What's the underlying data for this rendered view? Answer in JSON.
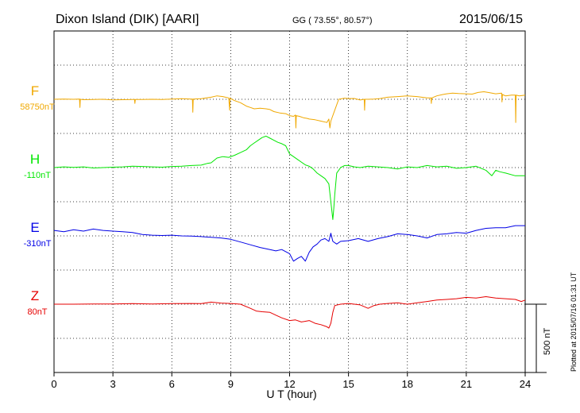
{
  "header": {
    "station": "Dixon Island (DIK)  [AARI]",
    "coords": "GG ( 73.55°,  80.57°)",
    "date": "2015/06/15"
  },
  "side_note": "Plotted at 2015/07/16 01:31  UT",
  "scale_bar_label": "500 nT",
  "colors": {
    "F": "#f0a800",
    "H": "#00e600",
    "E": "#0000e6",
    "Z": "#e60000"
  },
  "chart_data": {
    "type": "line",
    "title": "Dixon Island (DIK)  [AARI]",
    "xlabel": "U T (hour)",
    "ylabel": "",
    "xlim": [
      0,
      24
    ],
    "x_ticks": [
      "0",
      "3",
      "6",
      "9",
      "12",
      "15",
      "18",
      "21",
      "24"
    ],
    "grid": true,
    "scale_nT": 500,
    "series": [
      {
        "name": "F",
        "baseline_label": "58750nT",
        "x": [
          0,
          0.5,
          1.0,
          1.3,
          1.32,
          1.34,
          1.5,
          2,
          2.5,
          3,
          3.5,
          4,
          4.1,
          4.12,
          4.14,
          4.5,
          5,
          5.5,
          6,
          6.5,
          7,
          7.05,
          7.07,
          7.09,
          7.5,
          8,
          8.3,
          8.6,
          8.9,
          8.95,
          8.97,
          8.99,
          9.2,
          9.5,
          9.8,
          10.0,
          10.2,
          10.5,
          10.8,
          11.0,
          11.2,
          11.5,
          11.8,
          12.0,
          12.2,
          12.3,
          12.32,
          12.34,
          12.5,
          12.7,
          12.9,
          13.0,
          13.3,
          13.6,
          13.9,
          14.0,
          14.05,
          14.1,
          14.3,
          14.5,
          14.8,
          15.0,
          15.3,
          15.6,
          15.8,
          15.82,
          15.84,
          16.0,
          16.3,
          16.6,
          17.0,
          17.5,
          18.0,
          18.5,
          19.0,
          19.2,
          19.22,
          19.24,
          19.5,
          19.8,
          20.0,
          20.3,
          20.6,
          21.0,
          21.3,
          21.6,
          21.9,
          22.2,
          22.5,
          22.8,
          22.82,
          22.84,
          23.0,
          23.3,
          23.5,
          23.52,
          23.54,
          23.7,
          24.0
        ],
        "y": [
          0,
          2,
          0,
          1,
          -60,
          0,
          -3,
          -2,
          0,
          -4,
          -3,
          -2,
          -2,
          -30,
          -2,
          -1,
          0,
          -2,
          2,
          4,
          1,
          1,
          -95,
          1,
          4,
          15,
          25,
          20,
          10,
          -80,
          10,
          5,
          -10,
          -25,
          -50,
          -60,
          -70,
          -65,
          -70,
          -75,
          -90,
          -100,
          -105,
          -120,
          -125,
          -115,
          -210,
          -120,
          -125,
          -135,
          -140,
          -145,
          -150,
          -160,
          -170,
          -145,
          -210,
          -160,
          -80,
          0,
          8,
          5,
          6,
          -5,
          0,
          -80,
          0,
          0,
          2,
          5,
          15,
          20,
          25,
          20,
          10,
          10,
          -30,
          10,
          25,
          35,
          40,
          45,
          42,
          40,
          38,
          50,
          55,
          48,
          40,
          45,
          -20,
          35,
          25,
          30,
          30,
          -170,
          30,
          25,
          30
        ]
      },
      {
        "name": "H",
        "baseline_label": "-110nT",
        "x": [
          0,
          0.5,
          1.0,
          1.5,
          2.0,
          2.5,
          3.0,
          3.5,
          4.0,
          4.5,
          5.0,
          5.5,
          6.0,
          6.5,
          7.0,
          7.5,
          7.8,
          8.0,
          8.3,
          8.6,
          8.9,
          9.2,
          9.5,
          9.8,
          10.0,
          10.2,
          10.4,
          10.6,
          10.8,
          11.0,
          11.2,
          11.4,
          11.6,
          11.8,
          12.0,
          12.2,
          12.4,
          12.6,
          12.8,
          13.0,
          13.2,
          13.4,
          13.6,
          13.8,
          14.0,
          14.1,
          14.2,
          14.25,
          14.3,
          14.4,
          14.6,
          14.8,
          15.0,
          15.3,
          15.6,
          16.0,
          16.5,
          17.0,
          17.5,
          18.0,
          18.5,
          19.0,
          19.5,
          20.0,
          20.5,
          21.0,
          21.5,
          22.0,
          22.3,
          22.5,
          22.7,
          23.0,
          23.5,
          24.0
        ],
        "y": [
          0,
          5,
          2,
          5,
          -3,
          0,
          3,
          5,
          10,
          8,
          5,
          3,
          8,
          10,
          15,
          18,
          30,
          35,
          70,
          80,
          75,
          90,
          110,
          130,
          160,
          180,
          200,
          220,
          230,
          215,
          200,
          185,
          175,
          160,
          100,
          80,
          60,
          40,
          20,
          10,
          -10,
          -40,
          -60,
          -80,
          -120,
          -250,
          -380,
          -300,
          -200,
          -40,
          0,
          15,
          15,
          5,
          0,
          10,
          5,
          0,
          -10,
          5,
          0,
          15,
          5,
          10,
          -5,
          0,
          10,
          -20,
          -60,
          -20,
          -30,
          -40,
          -60,
          -60
        ]
      },
      {
        "name": "E",
        "baseline_label": "-310nT",
        "x": [
          0,
          0.5,
          1.0,
          1.5,
          2.0,
          2.5,
          3.0,
          3.5,
          4.0,
          4.5,
          5.0,
          5.5,
          6.0,
          6.5,
          7.0,
          7.5,
          8.0,
          8.5,
          9.0,
          9.5,
          10.0,
          10.5,
          11.0,
          11.3,
          11.6,
          12.0,
          12.2,
          12.4,
          12.6,
          12.8,
          13.0,
          13.2,
          13.4,
          13.6,
          13.8,
          14.0,
          14.1,
          14.2,
          14.4,
          14.6,
          15.0,
          15.5,
          16.0,
          16.5,
          17.0,
          17.5,
          18.0,
          18.5,
          19.0,
          19.5,
          20.0,
          20.5,
          21.0,
          21.5,
          22.0,
          22.5,
          23.0,
          23.5,
          24.0
        ],
        "y": [
          40,
          30,
          45,
          35,
          50,
          40,
          35,
          30,
          25,
          10,
          5,
          3,
          5,
          0,
          -2,
          -5,
          -10,
          -15,
          -25,
          -45,
          -65,
          -85,
          -100,
          -110,
          -100,
          -130,
          -185,
          -165,
          -150,
          -185,
          -120,
          -80,
          -60,
          -30,
          -20,
          -40,
          20,
          -40,
          -60,
          -40,
          -35,
          -20,
          -40,
          -20,
          -5,
          15,
          10,
          0,
          -15,
          10,
          15,
          25,
          20,
          40,
          55,
          60,
          60,
          75,
          75
        ]
      },
      {
        "name": "Z",
        "baseline_label": "80nT",
        "x": [
          0,
          1,
          2,
          3,
          4,
          5,
          6,
          7,
          7.5,
          8.0,
          8.5,
          9.0,
          9.5,
          10.0,
          10.3,
          10.6,
          11.0,
          11.3,
          11.6,
          12.0,
          12.3,
          12.6,
          13.0,
          13.3,
          13.6,
          13.9,
          14.0,
          14.1,
          14.2,
          14.3,
          14.6,
          15.0,
          15.3,
          15.6,
          16.0,
          16.3,
          16.6,
          17.0,
          17.5,
          18.0,
          18.5,
          19.0,
          19.5,
          20.0,
          20.5,
          21.0,
          21.5,
          22.0,
          22.5,
          23.0,
          23.5,
          23.8,
          24.0
        ],
        "y": [
          0,
          0,
          2,
          2,
          4,
          2,
          4,
          5,
          4,
          15,
          8,
          5,
          0,
          -30,
          -50,
          -55,
          -60,
          -80,
          -100,
          -120,
          -115,
          -130,
          -120,
          -140,
          -150,
          -165,
          -175,
          -140,
          -60,
          -10,
          0,
          5,
          0,
          -5,
          -30,
          -10,
          0,
          5,
          10,
          0,
          10,
          20,
          30,
          35,
          40,
          50,
          45,
          55,
          45,
          40,
          35,
          20,
          30
        ]
      }
    ]
  }
}
